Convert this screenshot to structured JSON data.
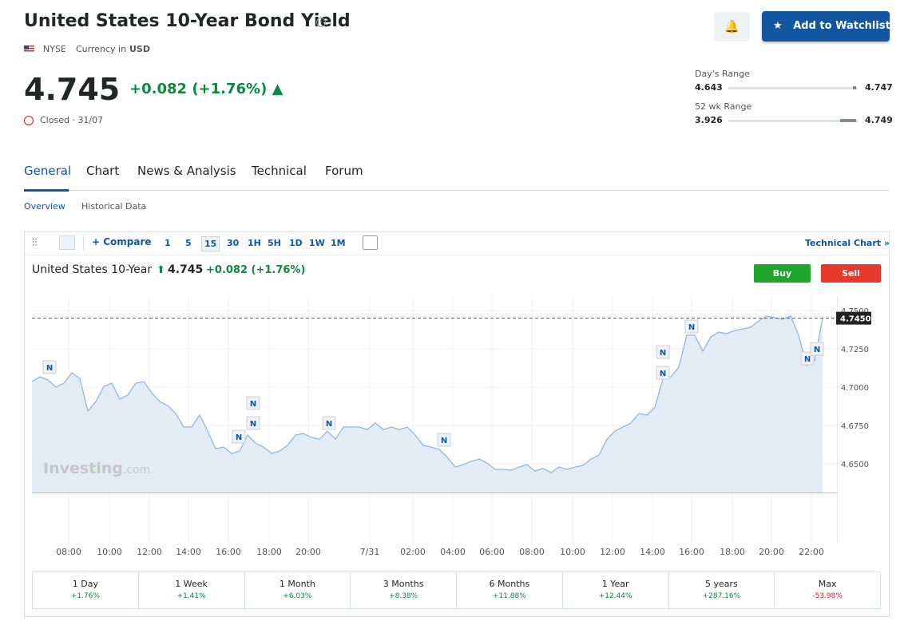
{
  "header": {
    "title": "United States 10-Year Bond Yield",
    "exchange": "NYSE",
    "currency_label": "Currency in",
    "currency": "USD",
    "watchlist_button": "Add to Watchlist"
  },
  "quote": {
    "price": "4.745",
    "change": "+0.082",
    "change_pct": "(+1.76%)",
    "status": "Closed · 31/07"
  },
  "ranges": [
    {
      "label": "Day's Range",
      "low": "4.643",
      "high": "4.747"
    },
    {
      "label": "52 wk Range",
      "low": "3.926",
      "high": "4.749"
    }
  ],
  "tabs": [
    "General",
    "Chart",
    "News & Analysis",
    "Technical",
    "Forum"
  ],
  "subtabs": [
    "Overview",
    "Historical Data"
  ],
  "toolbar": {
    "compare": "Compare",
    "intervals": [
      "1",
      "5",
      "15",
      "30",
      "1H",
      "5H",
      "1D",
      "1W",
      "1M"
    ],
    "technical_chart": "Technical Chart »"
  },
  "chart_header": {
    "name": "United States 10-Year",
    "price": "4.745",
    "change": "+0.082",
    "change_pct": "(+1.76%)",
    "buy": "Buy",
    "sell": "Sell"
  },
  "chart_data": {
    "type": "line",
    "color": "#8fb8dd",
    "area_color": "#e3ecf5",
    "watermark": [
      "Investing",
      ".com"
    ],
    "news_marker": "N",
    "values": [
      4.7036,
      4.7068,
      4.7047,
      4.7,
      4.7026,
      4.7094,
      4.7057,
      4.6844,
      4.6906,
      4.7005,
      4.7026,
      4.6922,
      4.6948,
      4.7026,
      4.7036,
      4.6964,
      4.6906,
      4.688,
      4.6828,
      4.674,
      4.674,
      4.6818,
      4.6714,
      4.6599,
      4.6609,
      4.6568,
      4.6583,
      4.6688,
      4.6635,
      4.6609,
      4.6568,
      4.6583,
      4.662,
      4.6688,
      4.6698,
      4.6672,
      4.6661,
      4.6714,
      4.6661,
      4.674,
      4.674,
      4.674,
      4.6724,
      4.6766,
      4.6724,
      4.674,
      4.6724,
      4.674,
      4.6688,
      4.662,
      4.6609,
      4.6594,
      4.6542,
      4.6479,
      4.6495,
      4.6516,
      4.6531,
      4.6505,
      4.6464,
      4.6464,
      4.6458,
      4.6479,
      4.6495,
      4.6453,
      4.6469,
      4.6443,
      4.6479,
      4.6464,
      4.6479,
      4.649,
      4.6531,
      4.6557,
      4.6661,
      4.6714,
      4.674,
      4.6766,
      4.6828,
      4.6818,
      4.687,
      4.7052,
      4.7068,
      4.713,
      4.7339,
      4.7339,
      4.7234,
      4.7328,
      4.7359,
      4.7349,
      4.737,
      4.738,
      4.7391,
      4.7432,
      4.7464,
      4.7453,
      4.7443,
      4.7464,
      4.7339,
      4.7141,
      4.7172,
      4.745
    ],
    "xlim": [
      0,
      99
    ],
    "xticks": [
      {
        "value": 4.6,
        "label": "08:00"
      },
      {
        "value": 9.7,
        "label": "10:00"
      },
      {
        "value": 14.7,
        "label": "12:00"
      },
      {
        "value": 19.6,
        "label": "14:00"
      },
      {
        "value": 24.6,
        "label": "16:00"
      },
      {
        "value": 29.7,
        "label": "18:00"
      },
      {
        "value": 34.6,
        "label": "20:00"
      },
      {
        "value": 42.3,
        "label": "7/31"
      },
      {
        "value": 47.7,
        "label": "02:00"
      },
      {
        "value": 52.7,
        "label": "04:00"
      },
      {
        "value": 57.6,
        "label": "06:00"
      },
      {
        "value": 62.6,
        "label": "08:00"
      },
      {
        "value": 67.7,
        "label": "10:00"
      },
      {
        "value": 72.7,
        "label": "12:00"
      },
      {
        "value": 77.7,
        "label": "14:00"
      },
      {
        "value": 82.6,
        "label": "16:00"
      },
      {
        "value": 87.7,
        "label": "18:00"
      },
      {
        "value": 92.6,
        "label": "20:00"
      },
      {
        "value": 97.6,
        "label": "22:00"
      }
    ],
    "ylim": [
      4.6313,
      4.7599
    ],
    "yticks": [
      {
        "value": 4.65,
        "label": "4.6500"
      },
      {
        "value": 4.675,
        "label": "4.6750"
      },
      {
        "value": 4.7,
        "label": "4.7000"
      },
      {
        "value": 4.725,
        "label": "4.7250"
      },
      {
        "value": 4.75,
        "label": "4.7500"
      }
    ],
    "last_price": {
      "value": 4.745,
      "label": "4.7450"
    },
    "grid": true
  },
  "performance": [
    {
      "period": "1 Day",
      "change": "+1.76%",
      "color": "#0a8a3a"
    },
    {
      "period": "1 Week",
      "change": "+1.41%",
      "color": "#0a8a3a"
    },
    {
      "period": "1 Month",
      "change": "+6.03%",
      "color": "#0a8a3a"
    },
    {
      "period": "3 Months",
      "change": "+8.38%",
      "color": "#0a8a3a"
    },
    {
      "period": "6 Months",
      "change": "+11.88%",
      "color": "#0a8a3a"
    },
    {
      "period": "1 Year",
      "change": "+12.44%",
      "color": "#0a8a3a"
    },
    {
      "period": "5 years",
      "change": "+287.16%",
      "color": "#0a8a3a"
    },
    {
      "period": "Max",
      "change": "-53.98%",
      "color": "#d91e18"
    }
  ]
}
